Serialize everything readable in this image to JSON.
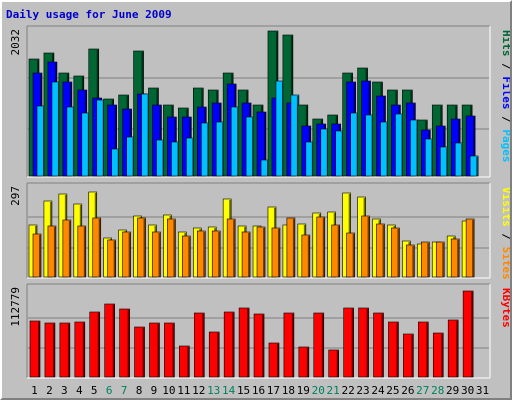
{
  "title": "Daily usage for June 2009",
  "colors": {
    "frame": "#c0c0c0",
    "title": "#0000cc",
    "hits": "#006633",
    "files": "#0000ff",
    "pages": "#00c0ff",
    "visits": "#ffff00",
    "sites": "#ff8800",
    "kbytes": "#ff0000",
    "weekend_day": "#00805c",
    "weekday_day": "#000000"
  },
  "chart_data": [
    {
      "type": "bar",
      "panel": "hits-files-pages",
      "y_max_label": "2032",
      "ylim": [
        0,
        2032
      ],
      "right_label_parts": [
        {
          "text": "Pages",
          "color": "#00c0ff"
        },
        {
          "text": " / ",
          "color": "#000000"
        },
        {
          "text": "Files",
          "color": "#0000ff"
        },
        {
          "text": " / ",
          "color": "#000000"
        },
        {
          "text": "Hits",
          "color": "#006633"
        }
      ],
      "categories": [
        "1",
        "2",
        "3",
        "4",
        "5",
        "6",
        "7",
        "8",
        "9",
        "10",
        "11",
        "12",
        "13",
        "14",
        "15",
        "16",
        "17",
        "18",
        "19",
        "20",
        "21",
        "22",
        "23",
        "24",
        "25",
        "26",
        "27",
        "28",
        "29",
        "30",
        "31"
      ],
      "series": [
        {
          "name": "Hits",
          "values": [
            1640,
            1720,
            1440,
            1400,
            1780,
            1080,
            1140,
            1750,
            1230,
            1000,
            950,
            1230,
            1200,
            1450,
            1200,
            1000,
            2032,
            1980,
            1000,
            800,
            850,
            1450,
            1520,
            1320,
            1200,
            1200,
            780,
            1000,
            1000,
            1000,
            0
          ]
        },
        {
          "name": "Files",
          "values": [
            1450,
            1600,
            1320,
            1200,
            1100,
            1000,
            940,
            1150,
            1000,
            830,
            830,
            960,
            1030,
            1290,
            1030,
            900,
            1100,
            1020,
            700,
            730,
            730,
            1320,
            1330,
            1120,
            1000,
            1030,
            640,
            700,
            800,
            840,
            0
          ]
        },
        {
          "name": "Pages",
          "values": [
            980,
            1320,
            960,
            880,
            1070,
            380,
            540,
            1150,
            500,
            480,
            530,
            740,
            760,
            960,
            820,
            230,
            1330,
            1140,
            480,
            660,
            630,
            880,
            860,
            750,
            870,
            780,
            520,
            400,
            460,
            280,
            0
          ]
        }
      ]
    },
    {
      "type": "bar",
      "panel": "visits-sites",
      "y_max_label": "297",
      "ylim": [
        0,
        297
      ],
      "right_label_parts": [
        {
          "text": "Sites",
          "color": "#ff8800"
        },
        {
          "text": " / ",
          "color": "#000000"
        },
        {
          "text": "Visits",
          "color": "#ffff00"
        }
      ],
      "categories": [
        "1",
        "2",
        "3",
        "4",
        "5",
        "6",
        "7",
        "8",
        "9",
        "10",
        "11",
        "12",
        "13",
        "14",
        "15",
        "16",
        "17",
        "18",
        "19",
        "20",
        "21",
        "22",
        "23",
        "24",
        "25",
        "26",
        "27",
        "28",
        "29",
        "30",
        "31"
      ],
      "series": [
        {
          "name": "Visits",
          "values": [
            172,
            252,
            277,
            245,
            282,
            130,
            157,
            205,
            175,
            207,
            149,
            165,
            168,
            260,
            170,
            170,
            232,
            172,
            176,
            215,
            216,
            280,
            268,
            195,
            175,
            120,
            110,
            118,
            138,
            186,
            0
          ]
        },
        {
          "name": "Sites",
          "values": [
            143,
            170,
            190,
            170,
            198,
            125,
            150,
            196,
            150,
            193,
            137,
            154,
            154,
            193,
            150,
            166,
            165,
            198,
            140,
            200,
            174,
            147,
            204,
            176,
            162,
            108,
            116,
            116,
            126,
            192,
            0
          ]
        }
      ]
    },
    {
      "type": "bar",
      "panel": "kbytes",
      "y_max_label": "112779",
      "ylim": [
        0,
        112779
      ],
      "right_label_parts": [
        {
          "text": "KBytes",
          "color": "#ff0000"
        }
      ],
      "categories": [
        "1",
        "2",
        "3",
        "4",
        "5",
        "6",
        "7",
        "8",
        "9",
        "10",
        "11",
        "12",
        "13",
        "14",
        "15",
        "16",
        "17",
        "18",
        "19",
        "20",
        "21",
        "22",
        "23",
        "24",
        "25",
        "26",
        "27",
        "28",
        "29",
        "30",
        "31"
      ],
      "series": [
        {
          "name": "KBytes",
          "values": [
            72000,
            69500,
            69500,
            70500,
            83000,
            93000,
            87000,
            64500,
            69500,
            69500,
            40000,
            82000,
            58000,
            83000,
            89000,
            80500,
            43500,
            82000,
            38500,
            82000,
            35000,
            88500,
            88500,
            81500,
            71000,
            55000,
            70500,
            56500,
            73000,
            110000,
            0
          ]
        }
      ]
    }
  ],
  "day_labels": [
    "1",
    "2",
    "3",
    "4",
    "5",
    "6",
    "7",
    "8",
    "9",
    "10",
    "11",
    "12",
    "13",
    "14",
    "15",
    "16",
    "17",
    "18",
    "19",
    "20",
    "21",
    "22",
    "23",
    "24",
    "25",
    "26",
    "27",
    "28",
    "29",
    "30",
    "31"
  ],
  "weekend_days": [
    6,
    7,
    13,
    14,
    20,
    21,
    27,
    28
  ]
}
